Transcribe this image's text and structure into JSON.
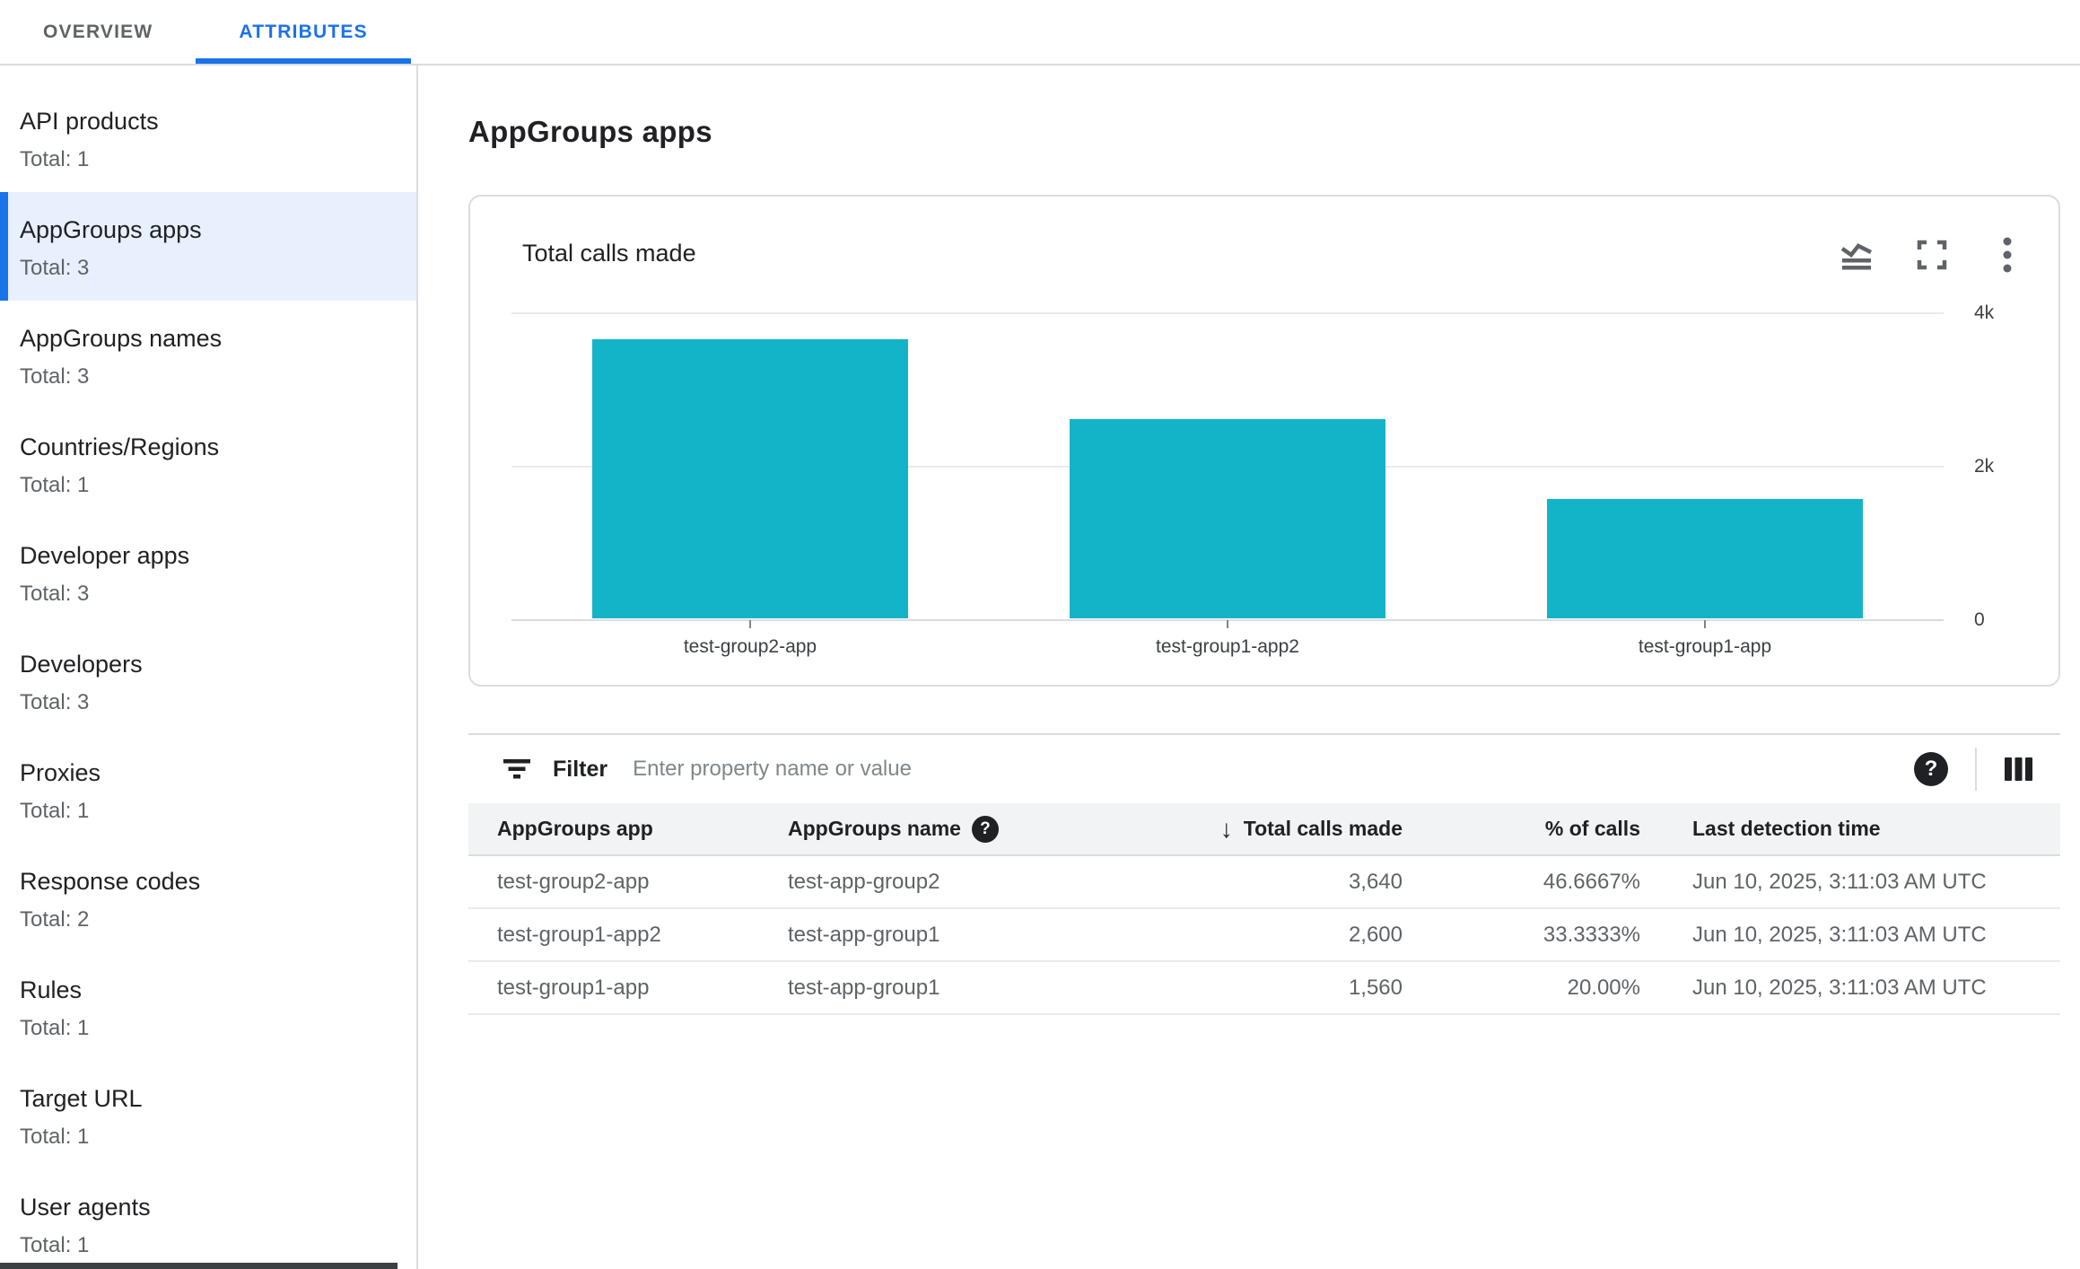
{
  "tabs": [
    {
      "label": "OVERVIEW",
      "active": false
    },
    {
      "label": "ATTRIBUTES",
      "active": true
    }
  ],
  "sidebar": {
    "items": [
      {
        "label": "API products",
        "total": "Total: 1",
        "selected": false
      },
      {
        "label": "AppGroups apps",
        "total": "Total: 3",
        "selected": true
      },
      {
        "label": "AppGroups names",
        "total": "Total: 3",
        "selected": false
      },
      {
        "label": "Countries/Regions",
        "total": "Total: 1",
        "selected": false
      },
      {
        "label": "Developer apps",
        "total": "Total: 3",
        "selected": false
      },
      {
        "label": "Developers",
        "total": "Total: 3",
        "selected": false
      },
      {
        "label": "Proxies",
        "total": "Total: 1",
        "selected": false
      },
      {
        "label": "Response codes",
        "total": "Total: 2",
        "selected": false
      },
      {
        "label": "Rules",
        "total": "Total: 1",
        "selected": false
      },
      {
        "label": "Target URL",
        "total": "Total: 1",
        "selected": false
      },
      {
        "label": "User agents",
        "total": "Total: 1",
        "selected": false
      }
    ]
  },
  "page_title": "AppGroups apps",
  "chart_card": {
    "title": "Total calls made",
    "action_icons": [
      "area-chart-icon",
      "fullscreen-icon",
      "kebab-menu-icon"
    ]
  },
  "chart_data": {
    "type": "bar",
    "title": "Total calls made",
    "categories": [
      "test-group2-app",
      "test-group1-app2",
      "test-group1-app"
    ],
    "values": [
      3640,
      2600,
      1560
    ],
    "xlabel": "",
    "ylabel": "",
    "ylim": [
      0,
      4000
    ],
    "yticks": [
      {
        "label": "4k",
        "value": 4000
      },
      {
        "label": "2k",
        "value": 2000
      },
      {
        "label": "0",
        "value": 0
      }
    ],
    "grid": true,
    "legend": false,
    "y_axis_position": "right"
  },
  "filter": {
    "label": "Filter",
    "placeholder": "Enter property name or value",
    "icons": [
      "filter-list-icon",
      "help-icon",
      "column-selector-icon"
    ]
  },
  "table": {
    "columns": [
      {
        "label": "AppGroups app"
      },
      {
        "label": "AppGroups name",
        "help_icon": true
      },
      {
        "label": "Total calls made",
        "sort": "descending",
        "align": "right"
      },
      {
        "label": "% of calls",
        "align": "right"
      },
      {
        "label": "Last detection time"
      }
    ],
    "rows": [
      [
        "test-group2-app",
        "test-app-group2",
        "3,640",
        "46.6667%",
        "Jun 10, 2025, 3:11:03 AM UTC"
      ],
      [
        "test-group1-app2",
        "test-app-group1",
        "2,600",
        "33.3333%",
        "Jun 10, 2025, 3:11:03 AM UTC"
      ],
      [
        "test-group1-app",
        "test-app-group1",
        "1,560",
        "20.00%",
        "Jun 10, 2025, 3:11:03 AM UTC"
      ]
    ]
  },
  "colors": {
    "accent_blue": "#1a73e8",
    "selected_bg": "#e8f0fe",
    "bar": "#14b4c8",
    "gridline": "#e8eaed",
    "axis_line": "#dadce0",
    "text_dark": "#202124",
    "text_gray": "#5f6368"
  }
}
